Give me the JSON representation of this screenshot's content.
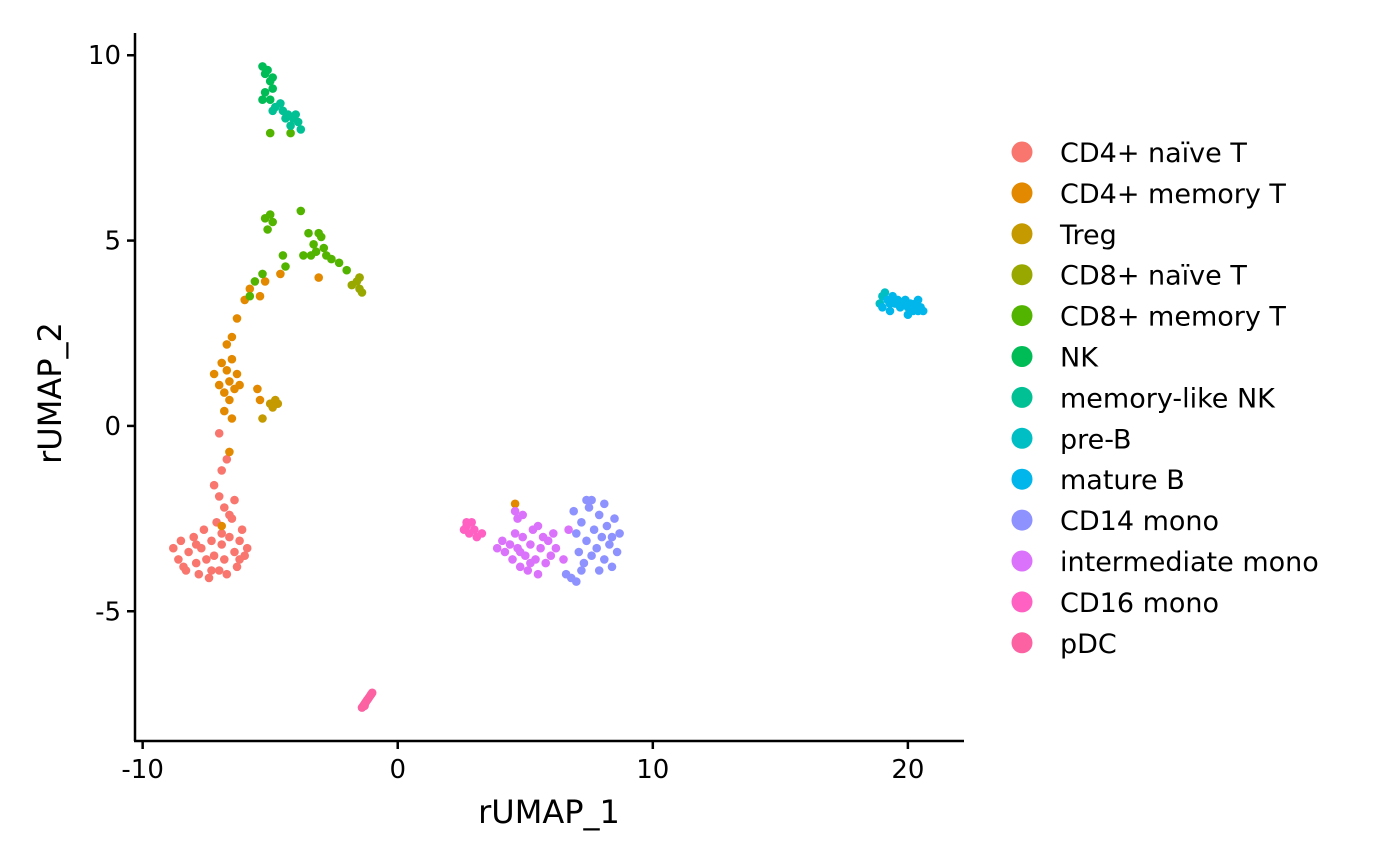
{
  "chart_data": {
    "type": "scatter",
    "xlabel": "rUMAP_1",
    "ylabel": "rUMAP_2",
    "xlim": [
      -10.3,
      22.2
    ],
    "ylim": [
      -8.5,
      10.6
    ],
    "xticks": [
      -10,
      0,
      10,
      20
    ],
    "xtick_labels": [
      "-10",
      "0",
      "10",
      "20"
    ],
    "yticks": [
      10,
      5,
      0,
      -5
    ],
    "ytick_labels": [
      "10",
      "5",
      "0",
      "-5"
    ],
    "grid": false,
    "legend": "right",
    "series": [
      {
        "name": "CD4+ naïve T",
        "color": "#F8766D",
        "points": [
          [
            -8.8,
            -3.3
          ],
          [
            -8.6,
            -3.6
          ],
          [
            -8.5,
            -3.1
          ],
          [
            -8.3,
            -3.9
          ],
          [
            -8.2,
            -3.4
          ],
          [
            -8.0,
            -3.0
          ],
          [
            -7.9,
            -3.7
          ],
          [
            -7.8,
            -4.0
          ],
          [
            -7.7,
            -3.3
          ],
          [
            -7.6,
            -2.8
          ],
          [
            -7.5,
            -3.6
          ],
          [
            -7.4,
            -4.1
          ],
          [
            -7.3,
            -3.1
          ],
          [
            -7.2,
            -3.5
          ],
          [
            -7.1,
            -2.6
          ],
          [
            -7.0,
            -3.9
          ],
          [
            -6.9,
            -3.2
          ],
          [
            -6.8,
            -3.6
          ],
          [
            -6.7,
            -4.0
          ],
          [
            -6.6,
            -3.0
          ],
          [
            -6.5,
            -2.5
          ],
          [
            -6.4,
            -3.4
          ],
          [
            -6.3,
            -3.8
          ],
          [
            -6.2,
            -3.1
          ],
          [
            -6.1,
            -2.8
          ],
          [
            -6.0,
            -3.5
          ],
          [
            -5.9,
            -3.3
          ],
          [
            -7.2,
            -1.6
          ],
          [
            -7.0,
            -1.9
          ],
          [
            -6.8,
            -2.2
          ],
          [
            -6.6,
            -2.4
          ],
          [
            -6.4,
            -2.0
          ],
          [
            -6.9,
            -1.2
          ],
          [
            -6.7,
            -0.9
          ],
          [
            -7.0,
            -0.2
          ],
          [
            -8.4,
            -3.8
          ],
          [
            -7.9,
            -3.2
          ],
          [
            -7.3,
            -3.9
          ],
          [
            -6.9,
            -2.9
          ],
          [
            -6.2,
            -3.6
          ]
        ]
      },
      {
        "name": "CD4+ memory T",
        "color": "#E38900",
        "points": [
          [
            -7.2,
            1.4
          ],
          [
            -7.0,
            1.1
          ],
          [
            -6.9,
            1.7
          ],
          [
            -6.8,
            0.9
          ],
          [
            -6.7,
            1.5
          ],
          [
            -6.6,
            1.2
          ],
          [
            -6.5,
            1.8
          ],
          [
            -6.4,
            1.0
          ],
          [
            -6.3,
            1.4
          ],
          [
            -6.2,
            1.1
          ],
          [
            -6.8,
            0.4
          ],
          [
            -6.6,
            0.7
          ],
          [
            -6.5,
            0.2
          ],
          [
            -6.7,
            2.2
          ],
          [
            -6.5,
            2.4
          ],
          [
            -6.3,
            2.9
          ],
          [
            -6.0,
            3.4
          ],
          [
            -5.8,
            3.7
          ],
          [
            -5.4,
            3.5
          ],
          [
            -5.2,
            3.9
          ],
          [
            -4.6,
            4.1
          ],
          [
            -3.1,
            4.0
          ],
          [
            -5.5,
            1.0
          ],
          [
            -5.4,
            0.7
          ],
          [
            -6.6,
            -0.7
          ],
          [
            -6.9,
            -2.7
          ],
          [
            4.6,
            -2.1
          ],
          [
            -1.5,
            4.0
          ]
        ]
      },
      {
        "name": "Treg",
        "color": "#C49A00",
        "points": [
          [
            -5.0,
            0.6
          ],
          [
            -4.9,
            0.5
          ],
          [
            -4.8,
            0.7
          ],
          [
            -4.7,
            0.6
          ],
          [
            -5.3,
            0.2
          ]
        ]
      },
      {
        "name": "CD8+ naïve T",
        "color": "#99A800",
        "points": [
          [
            -1.8,
            3.8
          ],
          [
            -1.6,
            3.9
          ],
          [
            -1.5,
            3.7
          ],
          [
            -1.4,
            3.6
          ],
          [
            -1.5,
            4.0
          ]
        ]
      },
      {
        "name": "CD8+ memory T",
        "color": "#53B400",
        "points": [
          [
            -5.2,
            5.6
          ],
          [
            -5.0,
            5.7
          ],
          [
            -4.9,
            5.5
          ],
          [
            -5.1,
            5.3
          ],
          [
            -3.8,
            5.8
          ],
          [
            -3.5,
            5.2
          ],
          [
            -3.3,
            4.9
          ],
          [
            -3.2,
            4.7
          ],
          [
            -3.0,
            5.1
          ],
          [
            -2.9,
            4.8
          ],
          [
            -2.8,
            4.6
          ],
          [
            -3.4,
            4.6
          ],
          [
            -2.6,
            4.5
          ],
          [
            -2.3,
            4.4
          ],
          [
            -2.0,
            4.2
          ],
          [
            -4.5,
            4.6
          ],
          [
            -4.4,
            4.3
          ],
          [
            -5.6,
            3.9
          ],
          [
            -5.3,
            4.1
          ],
          [
            -5.8,
            3.5
          ],
          [
            -5.0,
            7.9
          ],
          [
            -4.2,
            7.9
          ],
          [
            -3.7,
            4.6
          ],
          [
            -3.1,
            5.2
          ]
        ]
      },
      {
        "name": "NK",
        "color": "#00BC56",
        "points": [
          [
            -5.3,
            9.7
          ],
          [
            -5.2,
            9.5
          ],
          [
            -5.1,
            9.6
          ],
          [
            -5.0,
            9.3
          ],
          [
            -4.9,
            9.4
          ],
          [
            -5.2,
            9.0
          ],
          [
            -5.0,
            8.8
          ],
          [
            -4.9,
            9.1
          ],
          [
            -5.3,
            8.8
          ]
        ]
      },
      {
        "name": "memory-like NK",
        "color": "#00C094",
        "points": [
          [
            -4.8,
            8.6
          ],
          [
            -4.6,
            8.7
          ],
          [
            -4.5,
            8.5
          ],
          [
            -4.4,
            8.3
          ],
          [
            -4.3,
            8.4
          ],
          [
            -4.2,
            8.1
          ],
          [
            -4.1,
            8.3
          ],
          [
            -3.9,
            8.2
          ],
          [
            -3.8,
            8.0
          ],
          [
            -4.0,
            8.4
          ],
          [
            -4.9,
            8.5
          ]
        ]
      },
      {
        "name": "pre-B",
        "color": "#00BFC4",
        "points": [
          [
            18.9,
            3.3
          ],
          [
            19.0,
            3.5
          ],
          [
            19.1,
            3.6
          ]
        ]
      },
      {
        "name": "mature B",
        "color": "#00B6EB",
        "points": [
          [
            19.0,
            3.2
          ],
          [
            19.2,
            3.4
          ],
          [
            19.3,
            3.3
          ],
          [
            19.4,
            3.5
          ],
          [
            19.5,
            3.3
          ],
          [
            19.6,
            3.4
          ],
          [
            19.7,
            3.2
          ],
          [
            19.8,
            3.3
          ],
          [
            19.9,
            3.4
          ],
          [
            20.0,
            3.2
          ],
          [
            20.1,
            3.3
          ],
          [
            20.2,
            3.1
          ],
          [
            20.3,
            3.3
          ],
          [
            20.4,
            3.1
          ],
          [
            20.5,
            3.2
          ],
          [
            20.6,
            3.1
          ],
          [
            20.4,
            3.4
          ],
          [
            19.3,
            3.1
          ],
          [
            20.0,
            3.0
          ],
          [
            19.6,
            3.3
          ]
        ]
      },
      {
        "name": "CD14 mono",
        "color": "#8E92FF",
        "points": [
          [
            7.0,
            -2.9
          ],
          [
            7.1,
            -3.4
          ],
          [
            7.2,
            -2.6
          ],
          [
            7.3,
            -3.7
          ],
          [
            7.4,
            -3.1
          ],
          [
            7.5,
            -2.2
          ],
          [
            7.6,
            -3.5
          ],
          [
            7.7,
            -2.8
          ],
          [
            7.8,
            -3.3
          ],
          [
            7.9,
            -2.4
          ],
          [
            8.0,
            -3.0
          ],
          [
            8.1,
            -3.6
          ],
          [
            8.2,
            -2.7
          ],
          [
            8.3,
            -3.2
          ],
          [
            8.4,
            -3.8
          ],
          [
            8.5,
            -2.5
          ],
          [
            8.6,
            -3.4
          ],
          [
            8.7,
            -2.9
          ],
          [
            6.8,
            -4.1
          ],
          [
            7.0,
            -4.2
          ],
          [
            6.6,
            -4.0
          ],
          [
            7.4,
            -2.0
          ],
          [
            7.6,
            -2.0
          ],
          [
            8.1,
            -2.1
          ],
          [
            7.9,
            -3.9
          ],
          [
            8.4,
            -3.0
          ],
          [
            7.2,
            -3.9
          ],
          [
            6.9,
            -2.3
          ]
        ]
      },
      {
        "name": "intermediate mono",
        "color": "#DB72FB",
        "points": [
          [
            3.9,
            -3.3
          ],
          [
            4.1,
            -3.1
          ],
          [
            4.2,
            -3.4
          ],
          [
            4.4,
            -3.2
          ],
          [
            4.5,
            -3.6
          ],
          [
            4.6,
            -2.9
          ],
          [
            4.7,
            -3.3
          ],
          [
            4.8,
            -3.8
          ],
          [
            4.9,
            -3.0
          ],
          [
            5.0,
            -3.5
          ],
          [
            5.1,
            -3.9
          ],
          [
            5.2,
            -3.2
          ],
          [
            5.3,
            -2.8
          ],
          [
            5.4,
            -3.6
          ],
          [
            5.5,
            -4.0
          ],
          [
            5.6,
            -3.3
          ],
          [
            5.7,
            -3.0
          ],
          [
            5.8,
            -3.7
          ],
          [
            5.9,
            -3.1
          ],
          [
            6.0,
            -3.5
          ],
          [
            6.1,
            -2.9
          ],
          [
            6.2,
            -3.3
          ],
          [
            6.5,
            -3.6
          ],
          [
            6.7,
            -2.8
          ],
          [
            4.6,
            -2.3
          ],
          [
            4.7,
            -2.5
          ],
          [
            4.9,
            -2.4
          ],
          [
            5.5,
            -2.7
          ],
          [
            4.8,
            -3.4
          ],
          [
            5.2,
            -3.7
          ]
        ]
      },
      {
        "name": "CD16 mono",
        "color": "#FF61C3",
        "points": [
          [
            2.6,
            -2.8
          ],
          [
            2.7,
            -2.7
          ],
          [
            2.8,
            -2.9
          ],
          [
            2.9,
            -2.6
          ],
          [
            3.0,
            -2.8
          ],
          [
            3.1,
            -3.0
          ],
          [
            3.3,
            -2.9
          ],
          [
            2.7,
            -2.6
          ]
        ]
      },
      {
        "name": "pDC",
        "color": "#FC61A1",
        "points": [
          [
            -1.4,
            -7.6
          ],
          [
            -1.35,
            -7.55
          ],
          [
            -1.3,
            -7.5
          ],
          [
            -1.25,
            -7.45
          ],
          [
            -1.2,
            -7.4
          ],
          [
            -1.15,
            -7.35
          ],
          [
            -1.1,
            -7.3
          ],
          [
            -1.05,
            -7.25
          ],
          [
            -1.0,
            -7.2
          ],
          [
            -1.3,
            -7.55
          ]
        ]
      }
    ]
  }
}
